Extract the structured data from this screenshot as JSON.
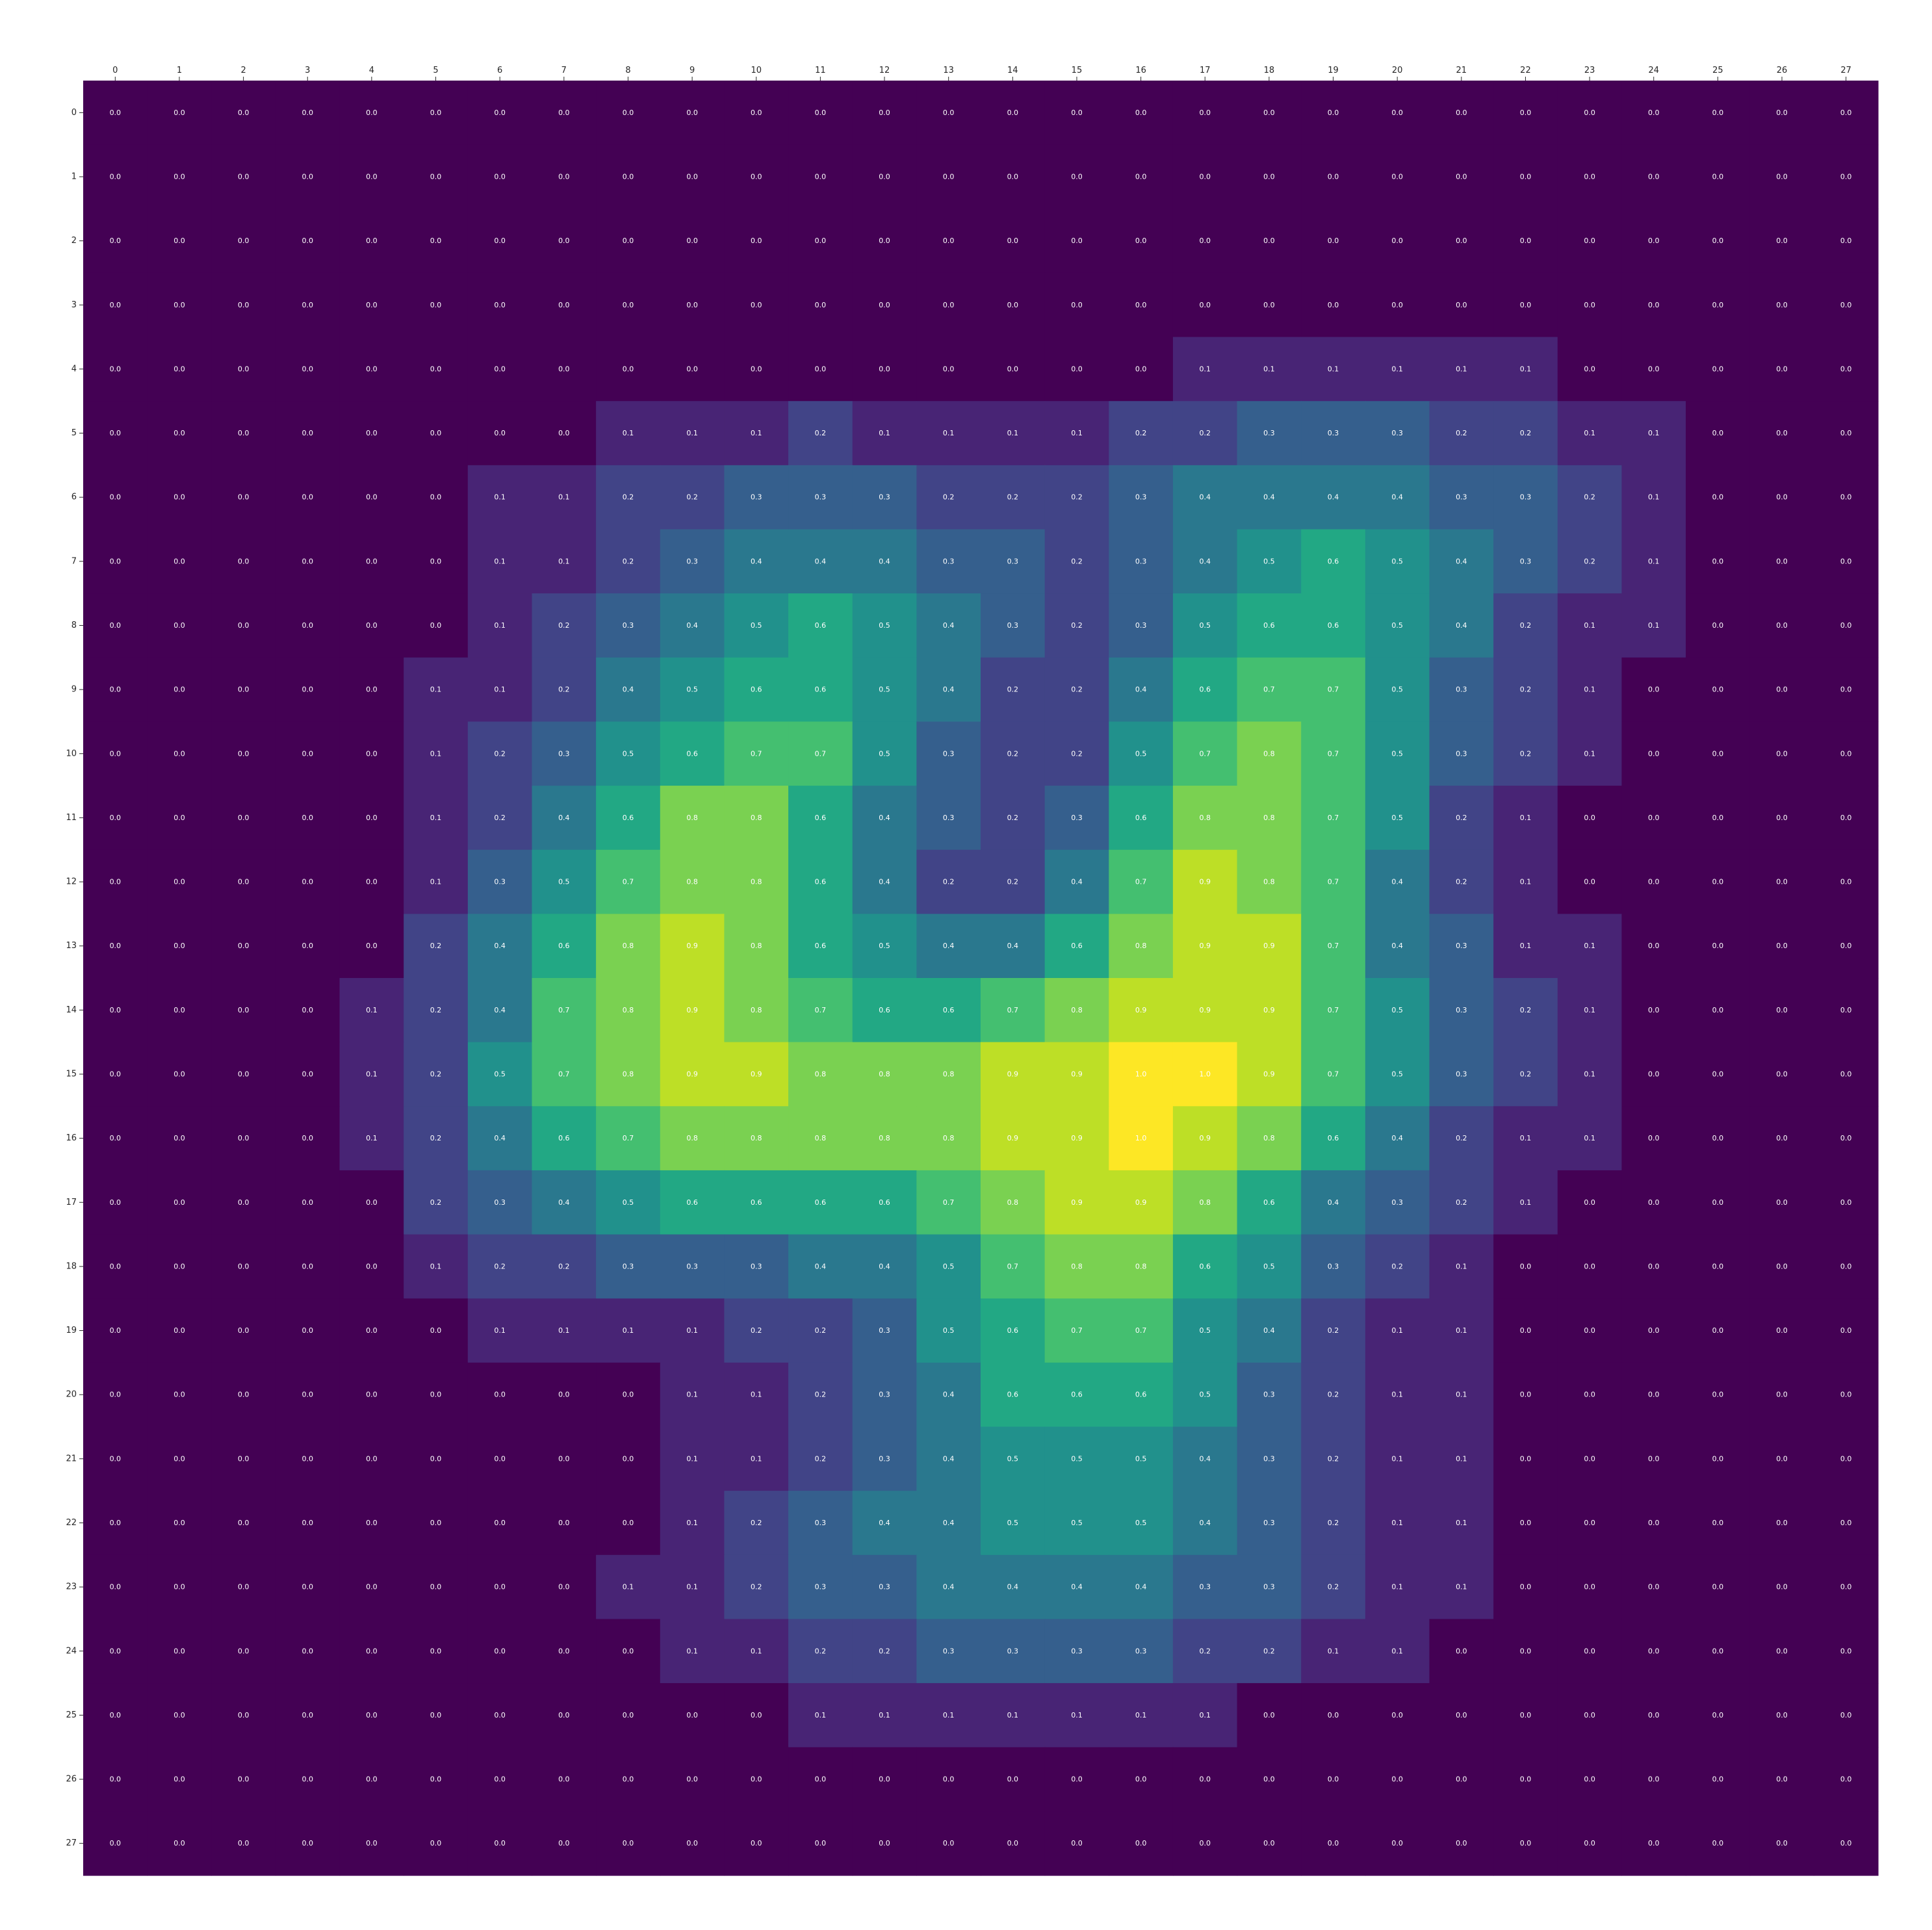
{
  "chart_data": {
    "type": "heatmap",
    "title": "",
    "xlabel": "",
    "ylabel": "",
    "colormap": "viridis",
    "value_range": [
      0,
      1
    ],
    "x_axis_position": "top",
    "grid": false,
    "x_ticks": [
      "0",
      "1",
      "2",
      "3",
      "4",
      "5",
      "6",
      "7",
      "8",
      "9",
      "10",
      "11",
      "12",
      "13",
      "14",
      "15",
      "16",
      "17",
      "18",
      "19",
      "20",
      "21",
      "22",
      "23",
      "24",
      "25",
      "26",
      "27"
    ],
    "y_ticks": [
      "0",
      "1",
      "2",
      "3",
      "4",
      "5",
      "6",
      "7",
      "8",
      "9",
      "10",
      "11",
      "12",
      "13",
      "14",
      "15",
      "16",
      "17",
      "18",
      "19",
      "20",
      "21",
      "22",
      "23",
      "24",
      "25",
      "26",
      "27"
    ],
    "values": [
      [
        0,
        0,
        0,
        0,
        0,
        0,
        0,
        0,
        0,
        0,
        0,
        0,
        0,
        0,
        0,
        0,
        0,
        0,
        0,
        0,
        0,
        0,
        0,
        0,
        0,
        0,
        0,
        0
      ],
      [
        0,
        0,
        0,
        0,
        0,
        0,
        0,
        0,
        0,
        0,
        0,
        0,
        0,
        0,
        0,
        0,
        0,
        0,
        0,
        0,
        0,
        0,
        0,
        0,
        0,
        0,
        0,
        0
      ],
      [
        0,
        0,
        0,
        0,
        0,
        0,
        0,
        0,
        0,
        0,
        0,
        0,
        0,
        0,
        0,
        0,
        0,
        0,
        0,
        0,
        0,
        0,
        0,
        0,
        0,
        0,
        0,
        0
      ],
      [
        0,
        0,
        0,
        0,
        0,
        0,
        0,
        0,
        0,
        0,
        0,
        0,
        0,
        0,
        0,
        0,
        0,
        0,
        0,
        0,
        0,
        0,
        0,
        0,
        0,
        0,
        0,
        0
      ],
      [
        0,
        0,
        0,
        0,
        0,
        0,
        0,
        0,
        0,
        0,
        0,
        0,
        0,
        0,
        0,
        0,
        0,
        0.1,
        0.1,
        0.1,
        0.1,
        0.1,
        0.1,
        0,
        0,
        0,
        0,
        0
      ],
      [
        0,
        0,
        0,
        0,
        0,
        0,
        0,
        0,
        0.1,
        0.1,
        0.1,
        0.2,
        0.1,
        0.1,
        0.1,
        0.1,
        0.2,
        0.2,
        0.3,
        0.3,
        0.3,
        0.2,
        0.2,
        0.1,
        0.1,
        0,
        0,
        0
      ],
      [
        0,
        0,
        0,
        0,
        0,
        0,
        0.1,
        0.1,
        0.2,
        0.2,
        0.3,
        0.3,
        0.3,
        0.2,
        0.2,
        0.2,
        0.3,
        0.4,
        0.4,
        0.4,
        0.4,
        0.3,
        0.3,
        0.2,
        0.1,
        0,
        0,
        0
      ],
      [
        0,
        0,
        0,
        0,
        0,
        0,
        0.1,
        0.1,
        0.2,
        0.3,
        0.4,
        0.4,
        0.4,
        0.3,
        0.3,
        0.2,
        0.3,
        0.4,
        0.5,
        0.6,
        0.5,
        0.4,
        0.3,
        0.2,
        0.1,
        0,
        0,
        0
      ],
      [
        0,
        0,
        0,
        0,
        0,
        0,
        0.1,
        0.2,
        0.3,
        0.4,
        0.5,
        0.6,
        0.5,
        0.4,
        0.3,
        0.2,
        0.3,
        0.5,
        0.6,
        0.6,
        0.5,
        0.4,
        0.2,
        0.1,
        0.1,
        0,
        0,
        0
      ],
      [
        0,
        0,
        0,
        0,
        0,
        0.1,
        0.1,
        0.2,
        0.4,
        0.5,
        0.6,
        0.6,
        0.5,
        0.4,
        0.2,
        0.2,
        0.4,
        0.6,
        0.7,
        0.7,
        0.5,
        0.3,
        0.2,
        0.1,
        0,
        0,
        0,
        0
      ],
      [
        0,
        0,
        0,
        0,
        0,
        0.1,
        0.2,
        0.3,
        0.5,
        0.6,
        0.7,
        0.7,
        0.5,
        0.3,
        0.2,
        0.2,
        0.5,
        0.7,
        0.8,
        0.7,
        0.5,
        0.3,
        0.2,
        0.1,
        0,
        0,
        0,
        0
      ],
      [
        0,
        0,
        0,
        0,
        0,
        0.1,
        0.2,
        0.4,
        0.6,
        0.8,
        0.8,
        0.6,
        0.4,
        0.3,
        0.2,
        0.3,
        0.6,
        0.8,
        0.8,
        0.7,
        0.5,
        0.2,
        0.1,
        0,
        0,
        0,
        0,
        0
      ],
      [
        0,
        0,
        0,
        0,
        0,
        0.1,
        0.3,
        0.5,
        0.7,
        0.8,
        0.8,
        0.6,
        0.4,
        0.2,
        0.2,
        0.4,
        0.7,
        0.9,
        0.8,
        0.7,
        0.4,
        0.2,
        0.1,
        0,
        0,
        0,
        0,
        0
      ],
      [
        0,
        0,
        0,
        0,
        0,
        0.2,
        0.4,
        0.6,
        0.8,
        0.9,
        0.8,
        0.6,
        0.5,
        0.4,
        0.4,
        0.6,
        0.8,
        0.9,
        0.9,
        0.7,
        0.4,
        0.3,
        0.1,
        0.1,
        0,
        0,
        0,
        0
      ],
      [
        0,
        0,
        0,
        0,
        0.1,
        0.2,
        0.4,
        0.7,
        0.8,
        0.9,
        0.8,
        0.7,
        0.6,
        0.6,
        0.7,
        0.8,
        0.9,
        0.9,
        0.9,
        0.7,
        0.5,
        0.3,
        0.2,
        0.1,
        0,
        0,
        0,
        0
      ],
      [
        0,
        0,
        0,
        0,
        0.1,
        0.2,
        0.5,
        0.7,
        0.8,
        0.9,
        0.9,
        0.8,
        0.8,
        0.8,
        0.9,
        0.9,
        1.0,
        1.0,
        0.9,
        0.7,
        0.5,
        0.3,
        0.2,
        0.1,
        0,
        0,
        0,
        0
      ],
      [
        0,
        0,
        0,
        0,
        0.1,
        0.2,
        0.4,
        0.6,
        0.7,
        0.8,
        0.8,
        0.8,
        0.8,
        0.8,
        0.9,
        0.9,
        1.0,
        0.9,
        0.8,
        0.6,
        0.4,
        0.2,
        0.1,
        0.1,
        0,
        0,
        0,
        0
      ],
      [
        0,
        0,
        0,
        0,
        0,
        0.2,
        0.3,
        0.4,
        0.5,
        0.6,
        0.6,
        0.6,
        0.6,
        0.7,
        0.8,
        0.9,
        0.9,
        0.8,
        0.6,
        0.4,
        0.3,
        0.2,
        0.1,
        0,
        0,
        0,
        0,
        0
      ],
      [
        0,
        0,
        0,
        0,
        0,
        0.1,
        0.2,
        0.2,
        0.3,
        0.3,
        0.3,
        0.4,
        0.4,
        0.5,
        0.7,
        0.8,
        0.8,
        0.6,
        0.5,
        0.3,
        0.2,
        0.1,
        0,
        0,
        0,
        0,
        0,
        0
      ],
      [
        0,
        0,
        0,
        0,
        0,
        0,
        0.1,
        0.1,
        0.1,
        0.1,
        0.2,
        0.2,
        0.3,
        0.5,
        0.6,
        0.7,
        0.7,
        0.5,
        0.4,
        0.2,
        0.1,
        0.1,
        0,
        0,
        0,
        0,
        0,
        0
      ],
      [
        0,
        0,
        0,
        0,
        0,
        0,
        0,
        0,
        0,
        0.1,
        0.1,
        0.2,
        0.3,
        0.4,
        0.6,
        0.6,
        0.6,
        0.5,
        0.3,
        0.2,
        0.1,
        0.1,
        0,
        0,
        0,
        0,
        0,
        0
      ],
      [
        0,
        0,
        0,
        0,
        0,
        0,
        0,
        0,
        0,
        0.1,
        0.1,
        0.2,
        0.3,
        0.4,
        0.5,
        0.5,
        0.5,
        0.4,
        0.3,
        0.2,
        0.1,
        0.1,
        0,
        0,
        0,
        0,
        0,
        0
      ],
      [
        0,
        0,
        0,
        0,
        0,
        0,
        0,
        0,
        0,
        0.1,
        0.2,
        0.3,
        0.4,
        0.4,
        0.5,
        0.5,
        0.5,
        0.4,
        0.3,
        0.2,
        0.1,
        0.1,
        0,
        0,
        0,
        0,
        0,
        0
      ],
      [
        0,
        0,
        0,
        0,
        0,
        0,
        0,
        0,
        0.1,
        0.1,
        0.2,
        0.3,
        0.3,
        0.4,
        0.4,
        0.4,
        0.4,
        0.3,
        0.3,
        0.2,
        0.1,
        0.1,
        0,
        0,
        0,
        0,
        0,
        0
      ],
      [
        0,
        0,
        0,
        0,
        0,
        0,
        0,
        0,
        0,
        0.1,
        0.1,
        0.2,
        0.2,
        0.3,
        0.3,
        0.3,
        0.3,
        0.2,
        0.2,
        0.1,
        0.1,
        0,
        0,
        0,
        0,
        0,
        0,
        0
      ],
      [
        0,
        0,
        0,
        0,
        0,
        0,
        0,
        0,
        0,
        0,
        0,
        0.1,
        0.1,
        0.1,
        0.1,
        0.1,
        0.1,
        0.1,
        0,
        0,
        0,
        0,
        0,
        0,
        0,
        0,
        0,
        0
      ],
      [
        0,
        0,
        0,
        0,
        0,
        0,
        0,
        0,
        0,
        0,
        0,
        0,
        0,
        0,
        0,
        0,
        0,
        0,
        0,
        0,
        0,
        0,
        0,
        0,
        0,
        0,
        0,
        0
      ],
      [
        0,
        0,
        0,
        0,
        0,
        0,
        0,
        0,
        0,
        0,
        0,
        0,
        0,
        0,
        0,
        0,
        0,
        0,
        0,
        0,
        0,
        0,
        0,
        0,
        0,
        0,
        0,
        0
      ]
    ]
  }
}
